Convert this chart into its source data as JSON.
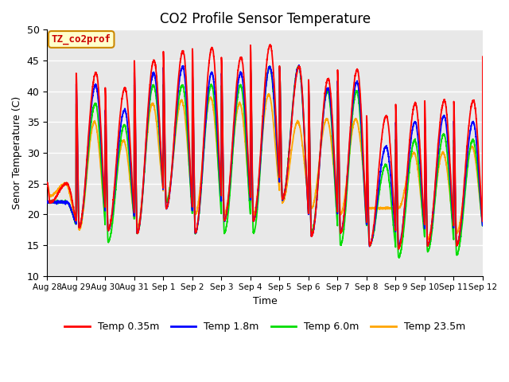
{
  "title": "CO2 Profile Sensor Temperature",
  "xlabel": "Time",
  "ylabel": "Senor Temperature (C)",
  "ylim": [
    10,
    50
  ],
  "background_color": "#e8e8e8",
  "grid_color": "white",
  "annotation_text": "TZ_co2prof",
  "annotation_color": "#cc0000",
  "annotation_bg": "#ffffcc",
  "annotation_border": "#cc8800",
  "legend_entries": [
    "Temp 0.35m",
    "Temp 1.8m",
    "Temp 6.0m",
    "Temp 23.5m"
  ],
  "line_colors": [
    "red",
    "blue",
    "#00dd00",
    "orange"
  ],
  "xtick_labels": [
    "Aug 28",
    "Aug 29",
    "Aug 30",
    "Aug 31",
    "Sep 1",
    "Sep 2",
    "Sep 3",
    "Sep 4",
    "Sep 5",
    "Sep 6",
    "Sep 7",
    "Sep 8",
    "Sep 9",
    "Sep 10",
    "Sep 11",
    "Sep 12"
  ],
  "ytick_values": [
    10,
    15,
    20,
    25,
    30,
    35,
    40,
    45,
    50
  ],
  "day_peaks_035": [
    25,
    43,
    40.5,
    45,
    46.5,
    47,
    45.5,
    47.5,
    44,
    42,
    43.5,
    36,
    38,
    38.5,
    38.5,
    45.5
  ],
  "day_troughs_035": [
    22,
    18,
    17.5,
    17,
    21,
    17,
    19,
    19,
    22.5,
    16.5,
    17,
    15,
    14.5,
    15,
    15,
    15.5
  ],
  "day_peaks_18": [
    22,
    41,
    37,
    43,
    44,
    43,
    43,
    44,
    44,
    40.5,
    41.5,
    31,
    35,
    36,
    35,
    42
  ],
  "day_troughs_18": [
    22,
    18,
    17.5,
    17,
    21,
    17,
    19,
    19,
    22.5,
    16.5,
    17,
    15,
    15,
    15,
    15,
    15.5
  ],
  "day_peaks_60": [
    22,
    38,
    34.5,
    41,
    41,
    41,
    41,
    44,
    44,
    40,
    40,
    28,
    32,
    33,
    32,
    39
  ],
  "day_troughs_60": [
    22,
    18,
    15.5,
    17,
    22,
    17,
    17,
    17,
    22.5,
    17,
    15,
    15,
    13,
    14,
    13.5,
    16
  ],
  "day_peaks_235": [
    25,
    35,
    32,
    38,
    38.5,
    39,
    38,
    39.5,
    35,
    35.5,
    35.5,
    21,
    30,
    30,
    31,
    36
  ],
  "day_troughs_235": [
    23,
    17.5,
    17.5,
    18,
    22,
    20,
    20,
    20,
    22,
    21,
    20,
    21,
    21,
    16,
    17,
    17
  ]
}
